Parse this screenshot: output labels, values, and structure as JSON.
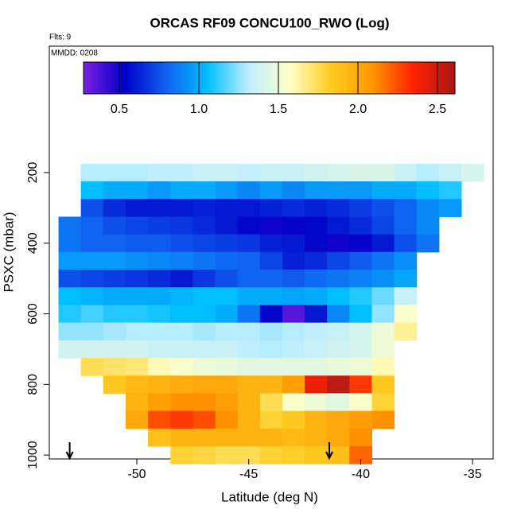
{
  "chart_data": {
    "type": "heatmap",
    "title": "ORCAS RF09 CONCU100_RWO (Log)",
    "annotations": [
      "Flts: 9",
      "MMDD: 0208"
    ],
    "x_label": "Latitude (deg N)",
    "y_label": "PSXC (mbar)",
    "x": [
      -53,
      -52,
      -51,
      -50,
      -49,
      -48,
      -47,
      -46,
      -45,
      -44,
      -43,
      -42,
      -41,
      -40,
      -39,
      -38,
      -37,
      -36,
      -35
    ],
    "y": [
      200,
      250,
      300,
      350,
      400,
      450,
      500,
      550,
      600,
      650,
      700,
      750,
      800,
      850,
      900,
      950,
      1000
    ],
    "z": [
      [
        null,
        1.3,
        1.3,
        1.3,
        1.32,
        1.32,
        1.35,
        1.35,
        1.33,
        1.35,
        1.35,
        1.38,
        1.4,
        1.42,
        1.42,
        1.35,
        1.3,
        1.35,
        1.4
      ],
      [
        null,
        1.05,
        1.0,
        1.0,
        0.95,
        1.0,
        1.0,
        0.95,
        0.9,
        0.95,
        0.9,
        0.95,
        0.95,
        0.95,
        1.0,
        1.0,
        1.05,
        1.1,
        null
      ],
      [
        null,
        0.75,
        0.65,
        0.6,
        0.6,
        0.6,
        0.62,
        0.6,
        0.6,
        0.62,
        0.65,
        0.62,
        0.65,
        0.7,
        0.75,
        0.8,
        0.9,
        0.95,
        null
      ],
      [
        0.85,
        0.8,
        0.75,
        0.72,
        0.7,
        0.68,
        0.65,
        0.6,
        0.55,
        0.5,
        0.52,
        0.55,
        0.6,
        0.65,
        0.72,
        0.8,
        0.9,
        null,
        null
      ],
      [
        0.85,
        0.8,
        0.8,
        0.78,
        0.78,
        0.75,
        0.72,
        0.7,
        0.68,
        0.62,
        0.6,
        0.55,
        0.5,
        0.52,
        0.6,
        0.75,
        0.85,
        null,
        null
      ],
      [
        0.95,
        0.95,
        0.95,
        0.92,
        0.9,
        0.88,
        0.85,
        0.82,
        0.8,
        0.72,
        0.62,
        0.65,
        0.72,
        0.78,
        0.85,
        0.92,
        null,
        null,
        null
      ],
      [
        0.75,
        0.72,
        0.7,
        0.68,
        0.65,
        0.6,
        0.68,
        0.75,
        0.8,
        0.8,
        0.78,
        0.82,
        0.85,
        0.88,
        0.92,
        0.98,
        null,
        null,
        null
      ],
      [
        1.05,
        1.02,
        1.0,
        1.0,
        1.0,
        1.02,
        1.05,
        1.05,
        1.0,
        1.0,
        0.98,
        1.0,
        1.05,
        1.1,
        1.2,
        1.35,
        null,
        null,
        null
      ],
      [
        1.1,
        1.15,
        1.1,
        1.1,
        1.08,
        1.05,
        1.05,
        1.0,
        0.85,
        0.55,
        0.35,
        0.6,
        0.9,
        1.05,
        1.25,
        1.55,
        null,
        null,
        null
      ],
      [
        1.25,
        1.25,
        1.28,
        1.3,
        1.3,
        1.3,
        1.28,
        1.3,
        1.3,
        1.28,
        1.3,
        1.32,
        1.35,
        1.4,
        1.5,
        1.65,
        null,
        null,
        null
      ],
      [
        1.38,
        1.38,
        1.38,
        1.38,
        1.35,
        1.35,
        1.35,
        1.35,
        1.32,
        1.3,
        1.32,
        1.35,
        1.38,
        1.4,
        1.5,
        null,
        null,
        null,
        null
      ],
      [
        null,
        1.75,
        1.72,
        1.7,
        1.6,
        1.55,
        1.5,
        1.48,
        1.45,
        1.45,
        1.45,
        1.45,
        1.48,
        1.5,
        1.6,
        null,
        null,
        null,
        null
      ],
      [
        null,
        null,
        1.85,
        1.92,
        1.95,
        1.98,
        2.0,
        2.0,
        1.95,
        1.95,
        2.05,
        2.4,
        2.55,
        2.3,
        1.85,
        null,
        null,
        null,
        null
      ],
      [
        null,
        null,
        null,
        1.95,
        2.05,
        2.1,
        2.1,
        2.05,
        1.95,
        1.75,
        1.55,
        1.5,
        1.45,
        1.55,
        1.8,
        null,
        null,
        null,
        null
      ],
      [
        null,
        null,
        null,
        2.0,
        2.25,
        2.3,
        2.25,
        2.1,
        1.95,
        1.8,
        1.85,
        1.95,
        2.0,
        2.05,
        2.1,
        null,
        null,
        null,
        null
      ],
      [
        null,
        null,
        null,
        null,
        1.9,
        1.95,
        1.95,
        1.95,
        1.95,
        1.95,
        1.92,
        1.95,
        2.0,
        2.1,
        null,
        null,
        null,
        null,
        null
      ],
      [
        null,
        null,
        null,
        null,
        null,
        1.8,
        1.78,
        1.75,
        1.75,
        1.8,
        1.82,
        1.85,
        1.9,
        2.2,
        null,
        null,
        null,
        null,
        null
      ]
    ],
    "xlim": [
      -53.91,
      -34.08
    ],
    "xticks": [
      -50,
      -45,
      -40,
      -35
    ],
    "ylim": [
      1011,
      -158
    ],
    "yticks": [
      200,
      400,
      600,
      800,
      1000
    ],
    "clim": [
      0.275,
      2.61
    ],
    "cticks": [
      0.5,
      {
        "value": 1,
        "label": "1.0"
      },
      1.5,
      {
        "value": 2,
        "label": "2.0"
      },
      2.5
    ],
    "colors": [
      "#7a1fe0",
      "#0000c8",
      "#1060f0",
      "#00bfff",
      "#bfeeff",
      "#ffffc8",
      "#ffcc20",
      "#ff9500",
      "#ff2000",
      "#a81818"
    ],
    "arrows": [
      -53,
      -41.4
    ]
  }
}
